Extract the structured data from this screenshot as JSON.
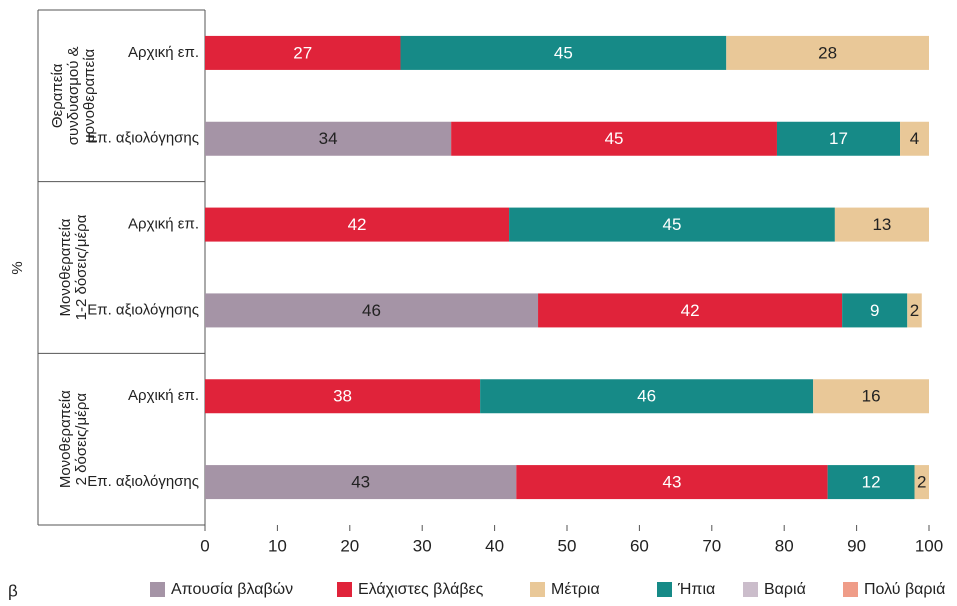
{
  "chart_data": {
    "type": "stacked_barh",
    "ylabel": "%",
    "panel_label": "β",
    "groups": [
      {
        "lines": [
          "Θεραπεία",
          "συνδυασμού &",
          "μονοθεραπεία"
        ]
      },
      {
        "lines": [
          "Μονοθεραπεία",
          "1-2 δόσεις/μέρα"
        ]
      },
      {
        "lines": [
          "Μονοθεραπεία",
          "2 δόσεις/μέρα"
        ]
      }
    ],
    "categories": [
      "Αρχική επ.",
      "Επ. αξιολόγησης",
      "Αρχική επ.",
      "Επ. αξιολόγησης",
      "Αρχική επ.",
      "Επ. αξιολόγησης"
    ],
    "series": [
      {
        "name": "Απουσία βλαβών",
        "color": "#a594a6",
        "values": [
          null,
          34,
          null,
          46,
          null,
          43
        ]
      },
      {
        "name": "Ελάχιστες βλάβες",
        "color": "#e0233a",
        "values": [
          27,
          45,
          42,
          42,
          38,
          43
        ]
      },
      {
        "name": "Ήπια",
        "color": "#168a87",
        "values": [
          45,
          17,
          45,
          9,
          46,
          12
        ]
      },
      {
        "name": "Μέτρια",
        "color": "#e9c898",
        "values": [
          28,
          4,
          13,
          2,
          16,
          2
        ]
      },
      {
        "name": "Βαριά",
        "color": "#cbbdcb",
        "values": [
          null,
          null,
          null,
          null,
          null,
          null
        ]
      },
      {
        "name": "Πολύ βαριά",
        "color": "#ef9c88",
        "values": [
          null,
          null,
          null,
          null,
          null,
          null
        ]
      }
    ],
    "xlim": [
      0,
      100
    ],
    "xticks": [
      0,
      10,
      20,
      30,
      40,
      50,
      60,
      70,
      80,
      90,
      100
    ],
    "grid": false
  }
}
